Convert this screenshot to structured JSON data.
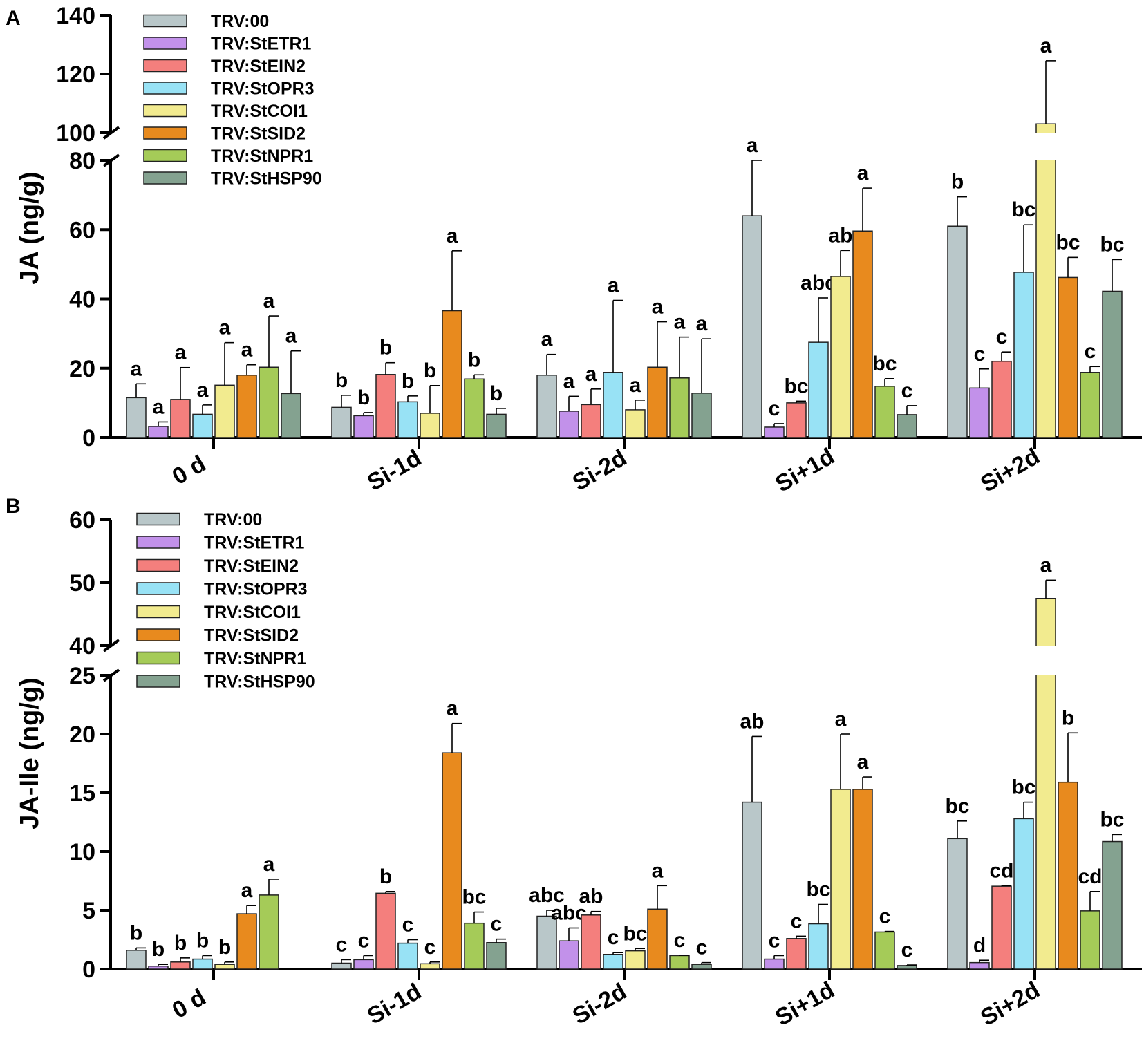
{
  "figure": {
    "series_names": [
      "TRV:00",
      "TRV:StETR1",
      "TRV:StEIN2",
      "TRV:StOPR3",
      "TRV:StCOI1",
      "TRV:StSID2",
      "TRV:StNPR1",
      "TRV:StHSP90"
    ],
    "series_colors": [
      "#b9c7c9",
      "#c291ea",
      "#f47f7d",
      "#98e2f5",
      "#f2eb8f",
      "#e88a1e",
      "#a5cb58",
      "#84a290"
    ],
    "categories": [
      "0 d",
      "Si-1d",
      "Si-2d",
      "Si+1d",
      "Si+2d"
    ]
  },
  "chart_data": [
    {
      "type": "bar",
      "panel": "A",
      "title": "",
      "xlabel": "",
      "ylabel": "JA (ng/g)",
      "axis_break": {
        "lower_range": [
          0,
          80
        ],
        "upper_range": [
          100,
          140
        ]
      },
      "yticks": [
        0,
        20,
        40,
        60,
        80,
        100,
        120,
        140
      ],
      "categories": [
        "0 d",
        "Si-1d",
        "Si-2d",
        "Si+1d",
        "Si+2d"
      ],
      "series": [
        {
          "name": "TRV:00",
          "values": [
            11.5,
            8.7,
            18,
            64,
            61
          ],
          "errors": [
            4,
            3.5,
            6,
            16,
            8.5
          ],
          "letters": [
            "a",
            "b",
            "a",
            "a",
            "b"
          ]
        },
        {
          "name": "TRV:StETR1",
          "values": [
            3.2,
            6.3,
            7.6,
            3,
            14.3
          ],
          "errors": [
            1.3,
            0.9,
            4.3,
            1,
            5.5
          ],
          "letters": [
            "a",
            "b",
            "a",
            "c",
            "c"
          ]
        },
        {
          "name": "TRV:StEIN2",
          "values": [
            11,
            18.2,
            9.5,
            10,
            22
          ],
          "errors": [
            9.2,
            3.4,
            4.5,
            0.5,
            2.7
          ],
          "letters": [
            "a",
            "b",
            "a",
            "bc",
            "c"
          ]
        },
        {
          "name": "TRV:StOPR3",
          "values": [
            6.7,
            10.3,
            18.8,
            27.5,
            47.7
          ],
          "errors": [
            2.7,
            1.7,
            20.8,
            12.8,
            13.7
          ],
          "letters": [
            "a",
            "b",
            "a",
            "abc",
            "bc"
          ]
        },
        {
          "name": "TRV:StCOI1",
          "values": [
            15.1,
            7,
            8,
            46.5,
            103
          ],
          "errors": [
            12.3,
            8,
            2.8,
            7.5,
            21.5
          ],
          "letters": [
            "a",
            "b",
            "a",
            "ab",
            "a"
          ]
        },
        {
          "name": "TRV:StSID2",
          "values": [
            18,
            36.6,
            20.3,
            59.6,
            46.2
          ],
          "errors": [
            3,
            17.3,
            13.1,
            12.4,
            5.8
          ],
          "letters": [
            "a",
            "a",
            "a",
            "a",
            "bc"
          ]
        },
        {
          "name": "TRV:StNPR1",
          "values": [
            20.3,
            16.9,
            17.2,
            14.8,
            18.8
          ],
          "errors": [
            14.8,
            1.2,
            11.8,
            2.2,
            1.7
          ],
          "letters": [
            "a",
            "b",
            "a",
            "bc",
            "c"
          ]
        },
        {
          "name": "TRV:StHSP90",
          "values": [
            12.7,
            6.7,
            12.8,
            6.6,
            42.2
          ],
          "errors": [
            12.3,
            1.7,
            15.7,
            2.6,
            9.2
          ],
          "letters": [
            "a",
            "b",
            "a",
            "c",
            "bc"
          ]
        }
      ]
    },
    {
      "type": "bar",
      "panel": "B",
      "title": "",
      "xlabel": "",
      "ylabel": "JA-Ile (ng/g)",
      "axis_break": {
        "lower_range": [
          0,
          25
        ],
        "upper_range": [
          40,
          60
        ]
      },
      "yticks": [
        0,
        5,
        10,
        15,
        20,
        25,
        40,
        50,
        60
      ],
      "categories": [
        "0 d",
        "Si-1d",
        "Si-2d",
        "Si+1d",
        "Si+2d"
      ],
      "series": [
        {
          "name": "TRV:00",
          "values": [
            1.6,
            0.5,
            4.5,
            14.2,
            11.1
          ],
          "errors": [
            0.2,
            0.3,
            0.5,
            5.6,
            1.5
          ],
          "letters": [
            "b",
            "c",
            "abc",
            "ab",
            "bc"
          ]
        },
        {
          "name": "TRV:StETR1",
          "values": [
            0.25,
            0.8,
            2.4,
            0.85,
            0.55
          ],
          "errors": [
            0.15,
            0.35,
            1.1,
            0.3,
            0.2
          ],
          "letters": [
            "b",
            "c",
            "abc",
            "c",
            "d"
          ]
        },
        {
          "name": "TRV:StEIN2",
          "values": [
            0.6,
            6.45,
            4.6,
            2.6,
            7.05
          ],
          "errors": [
            0.35,
            0.15,
            0.3,
            0.2,
            0.05
          ],
          "letters": [
            "b",
            "b",
            "ab",
            "c",
            "cd"
          ]
        },
        {
          "name": "TRV:StOPR3",
          "values": [
            0.85,
            2.2,
            1.25,
            3.85,
            12.8
          ],
          "errors": [
            0.3,
            0.3,
            0.15,
            1.65,
            1.4
          ],
          "letters": [
            "b",
            "c",
            "c",
            "bc",
            "bc"
          ]
        },
        {
          "name": "TRV:StCOI1",
          "values": [
            0.4,
            0.45,
            1.55,
            15.3,
            47.5
          ],
          "errors": [
            0.2,
            0.15,
            0.2,
            4.7,
            2.9
          ],
          "letters": [
            "b",
            "c",
            "bc",
            "a",
            "a"
          ]
        },
        {
          "name": "TRV:StSID2",
          "values": [
            4.7,
            18.4,
            5.1,
            15.3,
            15.9
          ],
          "errors": [
            0.7,
            2.5,
            2.0,
            1.05,
            4.2
          ],
          "letters": [
            "a",
            "a",
            "a",
            "a",
            "b"
          ]
        },
        {
          "name": "TRV:StNPR1",
          "values": [
            6.3,
            3.9,
            1.15,
            3.15,
            4.95
          ],
          "errors": [
            1.35,
            0.95,
            0.03,
            0.05,
            1.65
          ],
          "letters": [
            "a",
            "bc",
            "c",
            "c",
            "cd"
          ]
        },
        {
          "name": "TRV:StHSP90",
          "values": [
            null,
            2.25,
            0.4,
            0.3,
            10.85
          ],
          "errors": [
            null,
            0.3,
            0.15,
            0.05,
            0.6
          ],
          "letters": [
            null,
            "c",
            "c",
            "c",
            "bc"
          ]
        }
      ]
    }
  ]
}
